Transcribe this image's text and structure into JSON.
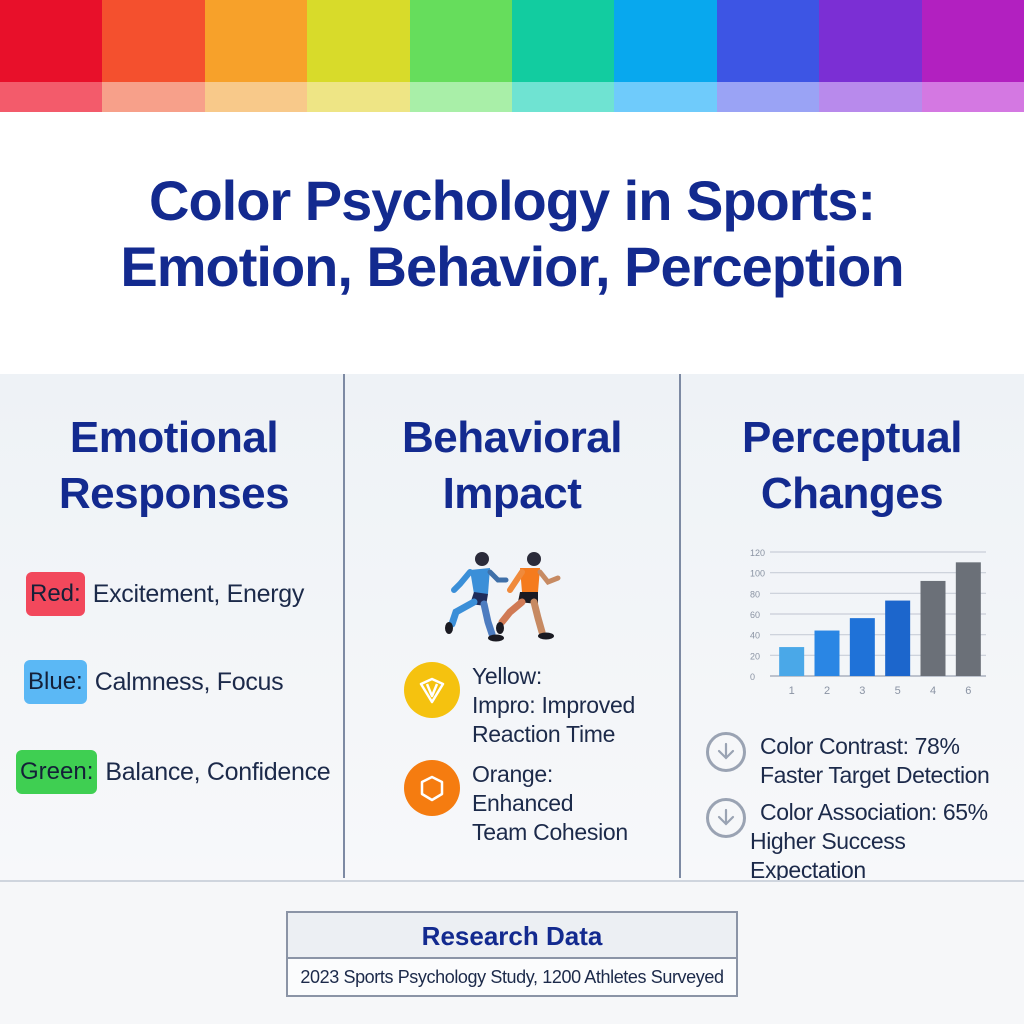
{
  "rainbow": {
    "swatches": [
      {
        "top": "#e8102a",
        "bottom": "#f35b6b"
      },
      {
        "top": "#f4502e",
        "bottom": "#f7a08a"
      },
      {
        "top": "#f7a12a",
        "bottom": "#f8c98a"
      },
      {
        "top": "#d8db2a",
        "bottom": "#eee585"
      },
      {
        "top": "#66dd5c",
        "bottom": "#a9efa8"
      },
      {
        "top": "#12cca0",
        "bottom": "#6fe3d2"
      },
      {
        "top": "#08a8ee",
        "bottom": "#6fcbfb"
      },
      {
        "top": "#3d55e4",
        "bottom": "#9aa3f5"
      },
      {
        "top": "#7b2fd4",
        "bottom": "#b88aec"
      },
      {
        "top": "#b220c0",
        "bottom": "#d478e2"
      }
    ]
  },
  "title": {
    "line1": "Color Psychology in Sports:",
    "line2": "Emotion, Behavior, Perception"
  },
  "columns": {
    "emotional": {
      "heading_line1": "Emotional",
      "heading_line2": "Responses",
      "items": [
        {
          "color_label": "Red:",
          "description": "Excitement, Energy",
          "tag_color": "#f2485c"
        },
        {
          "color_label": "Blue:",
          "description": "Calmness, Focus",
          "tag_color": "#5bb8f5"
        },
        {
          "color_label": "Green:",
          "description": "Balance, Confidence",
          "tag_color": "#3fcf52"
        }
      ]
    },
    "behavioral": {
      "heading_line1": "Behavioral",
      "heading_line2": "Impact",
      "icon": "runners-icon",
      "items": [
        {
          "line1": "Yellow:",
          "line2": "Impro: Improved",
          "line3": "Reaction Time",
          "icon": "shield-badge-icon",
          "icon_color": "#f5c20f"
        },
        {
          "line1": "Orange:",
          "line2": "Enhanced",
          "line3": "Team Cohesion",
          "icon": "hexagon-icon",
          "icon_color": "#f57c10"
        }
      ]
    },
    "perceptual": {
      "heading_line1": "Perceptual",
      "heading_line2": "Changes",
      "items": [
        {
          "line1": "Color Contrast: 78%",
          "line2": "Faster Target Detection",
          "icon": "down-arrow-circle-icon"
        },
        {
          "line1": "Color Association: 65%",
          "line2": "Higher Success Expectation",
          "icon": "down-arrow-circle-icon"
        }
      ]
    }
  },
  "chart_data": {
    "type": "bar",
    "title": "",
    "xlabel": "",
    "ylabel": "",
    "categories": [
      "1",
      "2",
      "3",
      "5",
      "4",
      "6"
    ],
    "values": [
      28,
      44,
      56,
      73,
      92,
      110
    ],
    "bar_colors": [
      "#4aa8e8",
      "#2a86e4",
      "#1f72d8",
      "#1c66cc",
      "#6b7078",
      "#6b7078"
    ],
    "y_tick_labels": [
      "0",
      "20",
      "40",
      "60",
      "80",
      "100",
      "120"
    ],
    "ylim": [
      0,
      120
    ],
    "grid": true,
    "legend": "none"
  },
  "research": {
    "heading": "Research Data",
    "body": "2023 Sports Psychology Study, 1200 Athletes Surveyed"
  }
}
